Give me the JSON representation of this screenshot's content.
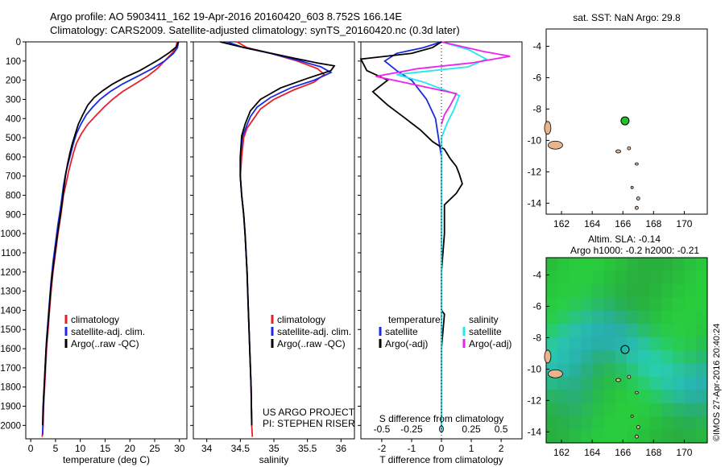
{
  "header": {
    "line1": "Argo profile: AO 5903411_162 19-Apr-2016 20160420_603 8.752S 166.14E",
    "line2": "Climatology: CARS2009. Satellite-adjusted climatology: synTS_20160420.nc (0.3d later)"
  },
  "colors": {
    "climatology": "#e8202a",
    "satellite": "#1a2be0",
    "argo": "#000000",
    "satellite_salinity": "#22e8ee",
    "argo_salinity": "#ee22ee",
    "land": "#e8b48c",
    "float_marker": "#22c02a"
  },
  "side_label": "©IMOS 27-Apr-2016 20:40:24",
  "chart_data": [
    {
      "id": "temperature",
      "type": "line",
      "xlabel": "temperature (deg C)",
      "ylabel": "",
      "xlim": [
        -1,
        31.5
      ],
      "ylim": [
        2070,
        0
      ],
      "xticks": [
        0,
        5,
        10,
        15,
        20,
        25,
        30
      ],
      "yticks": [
        0,
        100,
        200,
        300,
        400,
        500,
        600,
        700,
        800,
        900,
        1000,
        1100,
        1200,
        1300,
        1400,
        1500,
        1600,
        1700,
        1800,
        1900,
        2000
      ],
      "legend": [
        "climatology",
        "satellite-adj. clim.",
        "Argo(..raw -QC)"
      ],
      "series": [
        {
          "name": "climatology",
          "color_key": "climatology",
          "x": [
            29.5,
            29.3,
            28.5,
            27,
            25.5,
            23.5,
            21,
            18.5,
            16.5,
            14.8,
            13.3,
            11.5,
            10.2,
            9.2,
            8.6,
            8.1,
            7.6,
            7.2,
            6.6,
            6.1,
            5.5,
            5.0,
            4.5,
            4.1,
            3.8,
            3.5,
            3.2,
            3.0,
            2.8,
            2.6,
            2.5,
            2.4,
            2.3
          ],
          "y": [
            0,
            30,
            60,
            100,
            140,
            180,
            220,
            260,
            300,
            340,
            380,
            430,
            480,
            530,
            580,
            630,
            680,
            730,
            800,
            900,
            1000,
            1100,
            1200,
            1300,
            1400,
            1500,
            1600,
            1700,
            1800,
            1900,
            2000,
            2040,
            2060
          ]
        },
        {
          "name": "satellite-adj. clim.",
          "color_key": "satellite",
          "x": [
            29.8,
            29.6,
            28.8,
            27,
            24.5,
            21.5,
            18.5,
            16,
            14,
            12.5,
            11.2,
            10.1,
            9.2,
            8.6,
            8.1,
            7.6,
            7.1,
            6.6,
            6.1,
            5.5,
            5.0,
            4.5,
            4.1,
            3.8,
            3.5,
            3.2,
            3.0,
            2.8,
            2.6,
            2.5,
            2.4
          ],
          "y": [
            0,
            30,
            60,
            100,
            140,
            180,
            220,
            260,
            300,
            340,
            380,
            430,
            480,
            530,
            580,
            630,
            680,
            750,
            850,
            950,
            1050,
            1150,
            1250,
            1350,
            1450,
            1550,
            1650,
            1750,
            1850,
            1950,
            2050
          ]
        },
        {
          "name": "Argo(..raw -QC)",
          "color_key": "argo",
          "x": [
            29.8,
            29.4,
            28,
            26,
            24,
            22,
            19,
            16.5,
            14.5,
            12.8,
            11.5,
            10.5,
            9.6,
            9.0,
            8.4,
            7.9,
            7.4,
            7.0,
            6.5,
            6.0,
            5.4,
            4.9,
            4.4,
            4.0,
            3.7,
            3.4,
            3.1,
            2.9,
            2.7,
            2.5,
            2.4
          ],
          "y": [
            0,
            25,
            55,
            90,
            120,
            150,
            185,
            220,
            255,
            290,
            330,
            380,
            430,
            480,
            530,
            580,
            640,
            700,
            800,
            900,
            1000,
            1100,
            1200,
            1300,
            1400,
            1500,
            1600,
            1700,
            1800,
            1900,
            2000
          ]
        }
      ]
    },
    {
      "id": "salinity",
      "type": "line",
      "xlabel": "salinity",
      "ylabel": "",
      "xlim": [
        33.8,
        36.2
      ],
      "ylim": [
        2070,
        0
      ],
      "xticks": [
        34,
        34.5,
        35,
        35.5,
        36
      ],
      "legend": [
        "climatology",
        "satellite-adj. clim.",
        "Argo(..raw -QC)"
      ],
      "annotation": [
        "US ARGO PROJECT",
        "PI: STEPHEN RISER"
      ],
      "series": [
        {
          "name": "climatology",
          "color_key": "climatology",
          "x": [
            34.45,
            34.6,
            34.95,
            35.35,
            35.65,
            35.75,
            35.6,
            35.3,
            35.0,
            34.8,
            34.7,
            34.6,
            34.55,
            34.52,
            34.5,
            34.52,
            34.55,
            34.57,
            34.6,
            34.62,
            34.64,
            34.66,
            34.67,
            34.68
          ],
          "y": [
            0,
            30,
            60,
            100,
            140,
            170,
            210,
            250,
            300,
            350,
            400,
            450,
            500,
            600,
            700,
            800,
            900,
            1000,
            1200,
            1400,
            1600,
            1800,
            2000,
            2060
          ]
        },
        {
          "name": "satellite-adj. clim.",
          "color_key": "satellite",
          "x": [
            34.3,
            34.55,
            34.95,
            35.4,
            35.7,
            35.85,
            35.6,
            35.25,
            34.95,
            34.75,
            34.65,
            34.58,
            34.53,
            34.5,
            34.5,
            34.52,
            34.55,
            34.57,
            34.6,
            34.62,
            34.64,
            34.66,
            34.67
          ],
          "y": [
            0,
            30,
            60,
            100,
            130,
            160,
            200,
            240,
            290,
            340,
            390,
            450,
            500,
            600,
            700,
            800,
            900,
            1000,
            1200,
            1400,
            1600,
            1800,
            2000
          ]
        },
        {
          "name": "Argo(..raw -QC)",
          "color_key": "argo",
          "x": [
            34.2,
            34.5,
            34.9,
            35.3,
            35.65,
            35.9,
            35.85,
            35.5,
            35.1,
            34.8,
            34.65,
            34.57,
            34.52,
            34.5,
            34.5,
            34.52,
            34.55,
            34.57,
            34.6,
            34.62,
            34.64,
            34.66,
            34.67
          ],
          "y": [
            0,
            25,
            55,
            85,
            110,
            125,
            150,
            190,
            240,
            300,
            360,
            430,
            490,
            600,
            700,
            800,
            900,
            1000,
            1200,
            1400,
            1600,
            1800,
            2000
          ]
        }
      ]
    },
    {
      "id": "difference",
      "type": "line",
      "xlabel": "T difference from climatology",
      "xlabel_top": "S difference from climatology",
      "ylabel": "",
      "xlim": [
        -2.7,
        2.7
      ],
      "ylim": [
        2070,
        0
      ],
      "xticks": [
        -2,
        -1,
        0,
        1,
        2
      ],
      "xticks_top": [
        "-0.5",
        "-0.25",
        "0",
        "0.25",
        "0.5"
      ],
      "legend_left_title": "temperature",
      "legend_right_title": "salinity",
      "legend": [
        "satellite",
        "Argo(-adj)",
        "satellite",
        "Argo(-adj)"
      ],
      "series": [
        {
          "name": "satellite",
          "color_key": "satellite",
          "x": [
            0,
            -0.6,
            -1.5,
            -1.9,
            -1.5,
            -1.0,
            -0.5,
            -0.2,
            -0.1,
            0,
            0,
            0,
            0,
            0,
            0,
            0,
            0
          ],
          "y": [
            0,
            30,
            60,
            100,
            150,
            200,
            300,
            400,
            500,
            600,
            800,
            1000,
            1200,
            1400,
            1600,
            1800,
            2040
          ]
        },
        {
          "name": "Argo(-adj)",
          "color_key": "argo",
          "x": [
            0,
            -0.3,
            -1.0,
            -2.7,
            -2.5,
            -1.8,
            -2.3,
            -1.8,
            -1.2,
            -0.7,
            -0.3,
            0.1,
            0.3,
            0.5,
            0.6,
            0.7,
            0.5,
            0.1,
            0.1,
            0.1,
            0,
            0,
            0.1,
            0,
            0,
            0
          ],
          "y": [
            0,
            30,
            60,
            90,
            150,
            200,
            260,
            330,
            400,
            460,
            520,
            560,
            610,
            650,
            690,
            740,
            790,
            850,
            900,
            1000,
            1200,
            1400,
            1420,
            1600,
            1800,
            2000
          ]
        },
        {
          "name": "satellite",
          "color_key": "satellite_salinity",
          "x": [
            0,
            0.9,
            1.5,
            0.9,
            -1.5,
            -0.6,
            0.6,
            0.4,
            0.2,
            0,
            0,
            0,
            0,
            0,
            0,
            0,
            0
          ],
          "y": [
            0,
            40,
            90,
            130,
            170,
            210,
            280,
            360,
            420,
            500,
            600,
            800,
            1000,
            1200,
            1500,
            1800,
            2040
          ]
        },
        {
          "name": "Argo(-adj)",
          "color_key": "argo_salinity",
          "x": [
            0,
            1.4,
            2.3,
            1.0,
            -0.8,
            -2.2,
            -1.0,
            0.5,
            0.3,
            0.1,
            0
          ],
          "y": [
            0,
            50,
            75,
            110,
            140,
            180,
            220,
            270,
            330,
            380,
            430
          ]
        }
      ]
    },
    {
      "id": "sst_map",
      "type": "scatter",
      "title": "sat. SST: NaN Argo: 29.8",
      "xlim": [
        161,
        171.5
      ],
      "ylim": [
        -14.7,
        -2.9
      ],
      "xticks": [
        162,
        164,
        166,
        168,
        170
      ],
      "yticks": [
        -4,
        -6,
        -8,
        -10,
        -12,
        -14
      ],
      "points": [
        {
          "x": 166.14,
          "y": -8.752
        }
      ]
    },
    {
      "id": "sla_map",
      "type": "heatmap",
      "title": "Altim. SLA: -0.14",
      "subtitle": "Argo h1000: -0.2 h2000: -0.21",
      "xlim": [
        161,
        171.5
      ],
      "ylim": [
        -14.7,
        -2.9
      ],
      "xticks": [
        162,
        164,
        166,
        168,
        170
      ],
      "yticks": [
        -4,
        -6,
        -8,
        -10,
        -12,
        -14
      ],
      "points": [
        {
          "x": 166.14,
          "y": -8.752
        }
      ]
    }
  ]
}
